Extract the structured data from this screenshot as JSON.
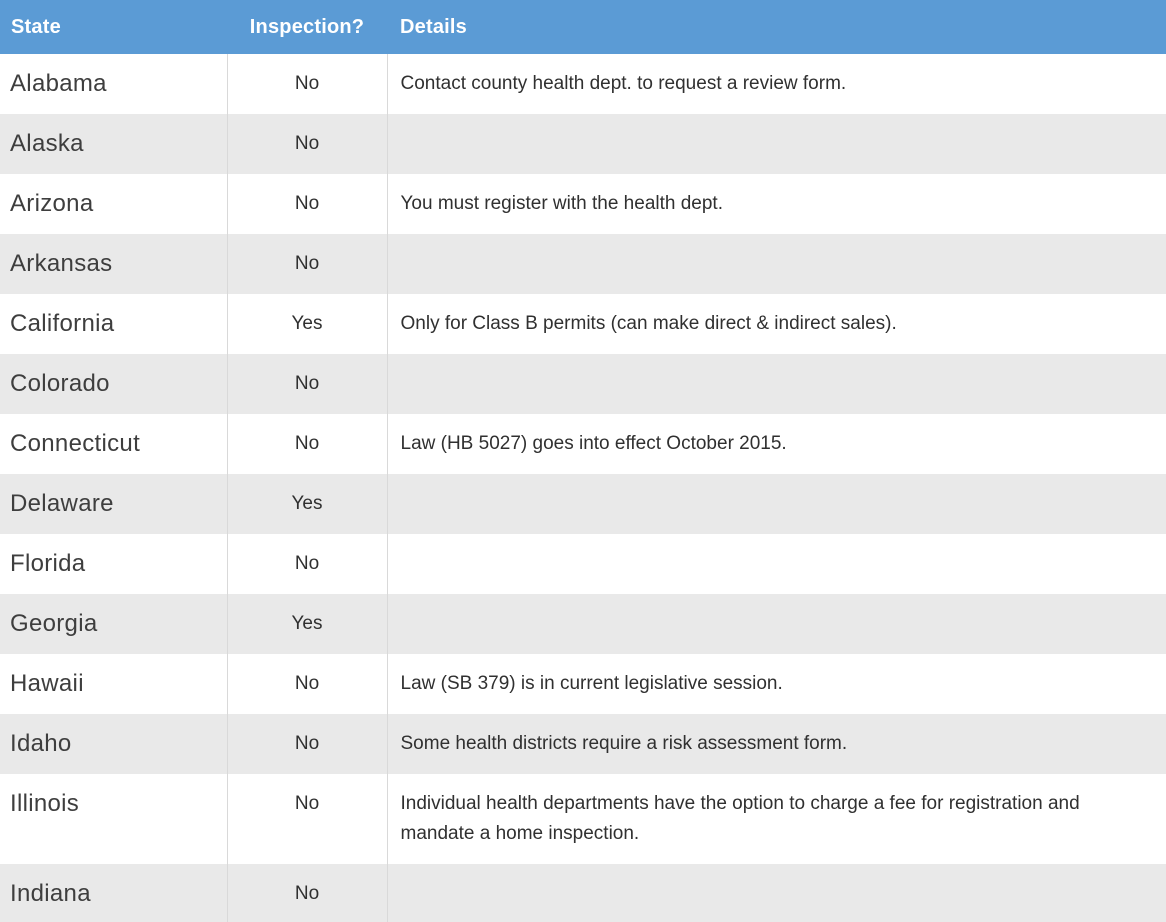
{
  "colors": {
    "header_bg": "#5b9bd5",
    "header_text": "#ffffff",
    "row_alt_bg": "#e9e9e9",
    "divider": "#d9d9d9",
    "state_text": "#3e3e3e",
    "body_text": "#303030"
  },
  "table": {
    "headers": [
      "State",
      "Inspection?",
      "Details"
    ],
    "rows": [
      {
        "state": "Alabama",
        "inspection": "No",
        "details": "Contact county health dept. to request a review form."
      },
      {
        "state": "Alaska",
        "inspection": "No",
        "details": ""
      },
      {
        "state": "Arizona",
        "inspection": "No",
        "details": "You must register with the health dept."
      },
      {
        "state": "Arkansas",
        "inspection": "No",
        "details": ""
      },
      {
        "state": "California",
        "inspection": "Yes",
        "details": "Only for Class B permits (can make direct & indirect sales)."
      },
      {
        "state": "Colorado",
        "inspection": "No",
        "details": ""
      },
      {
        "state": "Connecticut",
        "inspection": "No",
        "details": "Law (HB 5027) goes into effect October 2015."
      },
      {
        "state": "Delaware",
        "inspection": "Yes",
        "details": ""
      },
      {
        "state": "Florida",
        "inspection": "No",
        "details": ""
      },
      {
        "state": "Georgia",
        "inspection": "Yes",
        "details": ""
      },
      {
        "state": "Hawaii",
        "inspection": "No",
        "details": "Law (SB 379) is in current legislative session."
      },
      {
        "state": "Idaho",
        "inspection": "No",
        "details": "Some health districts require a risk assessment form."
      },
      {
        "state": "Illinois",
        "inspection": "No",
        "details": "Individual health departments have the option to charge a fee for registration and mandate a home inspection."
      },
      {
        "state": "Indiana",
        "inspection": "No",
        "details": ""
      }
    ]
  }
}
